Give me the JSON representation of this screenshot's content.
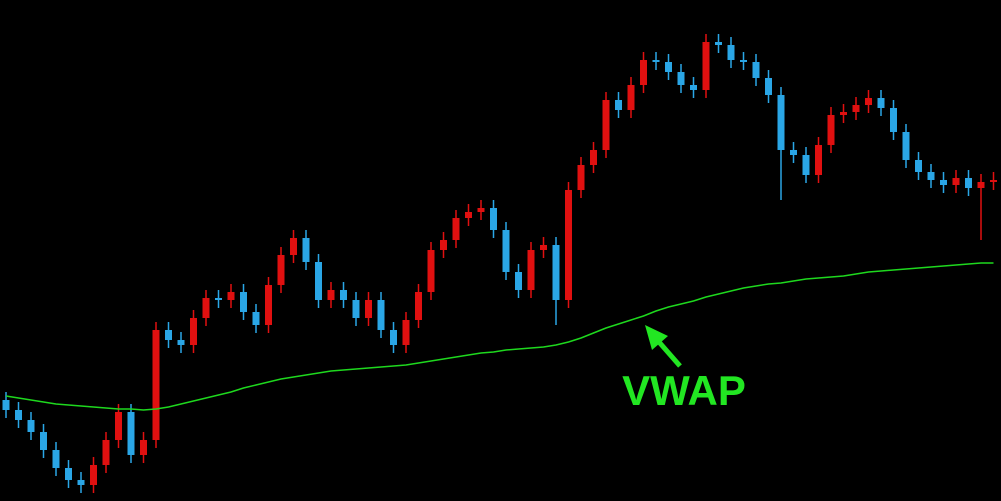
{
  "chart_data": {
    "type": "candlestick",
    "annotation": "VWAP",
    "annotation_color": "#22e622",
    "up_color": "#e01010",
    "down_color": "#2aa6e6",
    "ylim": [
      0,
      500
    ],
    "open": [
      100,
      90,
      80,
      68,
      50,
      32,
      20,
      15,
      35,
      60,
      88,
      45,
      60,
      170,
      160,
      155,
      182,
      202,
      200,
      208,
      188,
      175,
      215,
      245,
      262,
      238,
      200,
      210,
      200,
      182,
      200,
      170,
      155,
      180,
      208,
      250,
      260,
      282,
      288,
      292,
      270,
      228,
      210,
      250,
      255,
      200,
      310,
      335,
      350,
      400,
      390,
      415,
      440,
      438,
      428,
      415,
      410,
      458,
      455,
      440,
      438,
      422,
      405,
      350,
      345,
      325,
      355,
      385,
      388,
      395,
      402,
      392,
      368,
      340,
      328,
      320,
      315,
      322,
      312,
      318
    ],
    "high": [
      108,
      98,
      88,
      76,
      58,
      40,
      28,
      43,
      68,
      96,
      96,
      68,
      178,
      178,
      168,
      190,
      210,
      210,
      216,
      216,
      196,
      223,
      253,
      270,
      270,
      246,
      218,
      218,
      208,
      208,
      208,
      178,
      188,
      216,
      258,
      268,
      290,
      296,
      300,
      300,
      278,
      236,
      258,
      263,
      263,
      318,
      343,
      358,
      408,
      408,
      423,
      448,
      448,
      446,
      436,
      423,
      466,
      466,
      463,
      448,
      446,
      430,
      413,
      358,
      353,
      363,
      393,
      396,
      403,
      410,
      410,
      400,
      376,
      348,
      336,
      328,
      330,
      330,
      326,
      328
    ],
    "low": [
      82,
      72,
      60,
      42,
      24,
      12,
      7,
      7,
      27,
      52,
      37,
      37,
      52,
      152,
      147,
      147,
      174,
      192,
      192,
      180,
      167,
      167,
      207,
      237,
      230,
      192,
      192,
      192,
      174,
      174,
      162,
      147,
      147,
      172,
      200,
      242,
      252,
      274,
      280,
      262,
      220,
      202,
      202,
      242,
      175,
      192,
      302,
      327,
      342,
      382,
      382,
      407,
      430,
      420,
      407,
      402,
      402,
      447,
      432,
      430,
      414,
      397,
      300,
      337,
      317,
      317,
      347,
      377,
      380,
      387,
      384,
      360,
      332,
      320,
      312,
      307,
      307,
      304,
      260,
      310
    ],
    "close": [
      90,
      80,
      68,
      50,
      32,
      20,
      15,
      35,
      60,
      88,
      45,
      60,
      170,
      160,
      155,
      182,
      202,
      200,
      208,
      188,
      175,
      215,
      245,
      262,
      238,
      200,
      210,
      200,
      182,
      200,
      170,
      155,
      180,
      208,
      250,
      260,
      282,
      288,
      292,
      270,
      228,
      210,
      250,
      255,
      200,
      310,
      335,
      350,
      400,
      390,
      415,
      440,
      438,
      428,
      415,
      410,
      458,
      455,
      440,
      438,
      422,
      405,
      350,
      345,
      325,
      355,
      385,
      388,
      395,
      402,
      392,
      368,
      340,
      328,
      320,
      315,
      322,
      312,
      318,
      320
    ],
    "vwap": {
      "color": "#1ed81e",
      "values": [
        104,
        102,
        100,
        98,
        96,
        95,
        94,
        93,
        92,
        91,
        91,
        90,
        91,
        93,
        96,
        99,
        102,
        105,
        108,
        112,
        115,
        118,
        121,
        123,
        125,
        127,
        129,
        130,
        131,
        132,
        133,
        134,
        135,
        137,
        139,
        141,
        143,
        145,
        147,
        148,
        150,
        151,
        152,
        153,
        155,
        158,
        162,
        167,
        172,
        176,
        180,
        184,
        189,
        193,
        196,
        199,
        203,
        206,
        209,
        212,
        214,
        216,
        217,
        219,
        221,
        222,
        223,
        224,
        226,
        228,
        229,
        230,
        231,
        232,
        233,
        234,
        235,
        236,
        237,
        237
      ]
    }
  }
}
